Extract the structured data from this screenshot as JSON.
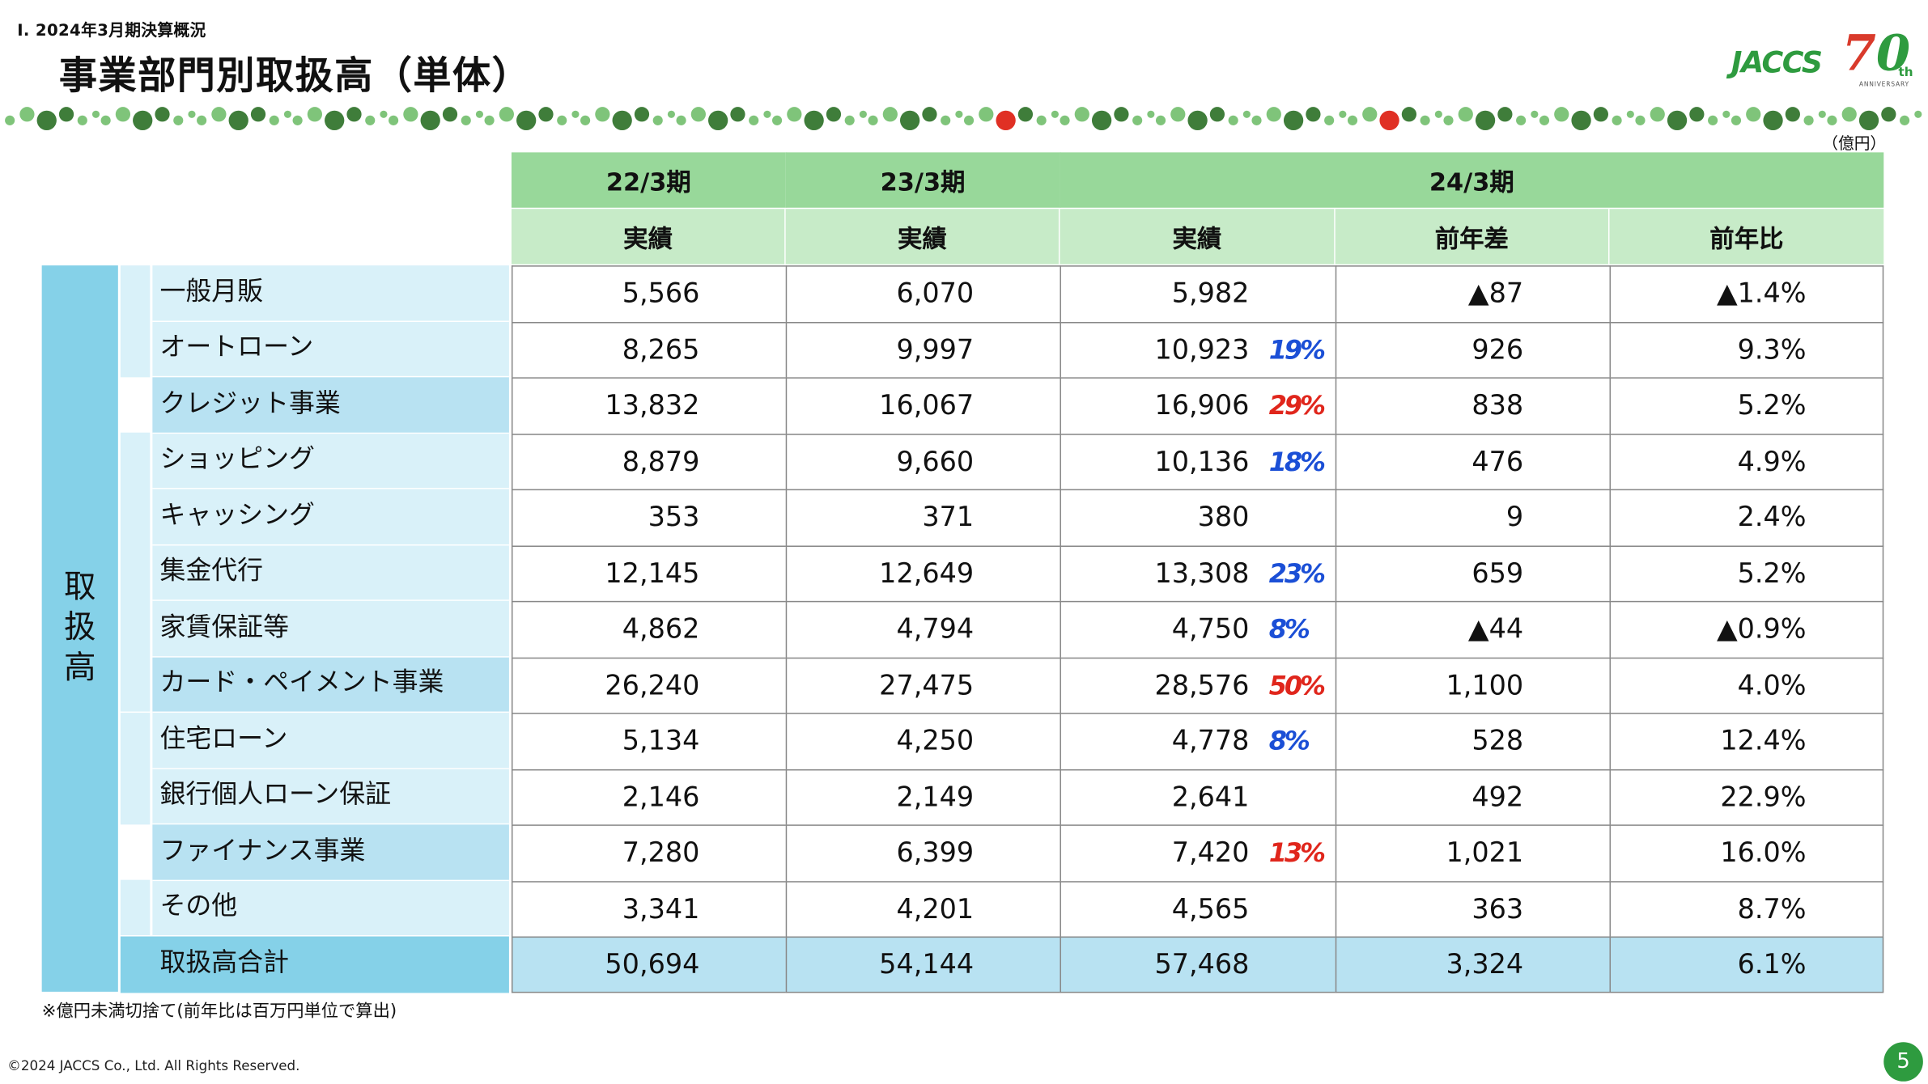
{
  "header": {
    "kicker": "Ⅰ. 2024年3月期決算概況",
    "title": "事業部門別取扱高（単体）",
    "logo_text": "JACCS",
    "logo_number": "70",
    "logo_suffix": "th",
    "logo_sub": "ANNIVERSARY"
  },
  "unit_label": "（億円）",
  "table": {
    "period_headers": [
      "22/3期",
      "23/3期",
      "24/3期"
    ],
    "sub_headers": [
      "実績",
      "実績",
      "実績",
      "前年差",
      "前年比"
    ],
    "side_label": [
      "取",
      "扱",
      "高"
    ],
    "rows": [
      {
        "label": "一般月販",
        "kind": "sub",
        "v": [
          "5,566",
          "6,070",
          "5,982",
          "▲87",
          "▲1.4%"
        ],
        "note": ""
      },
      {
        "label": "オートローン",
        "kind": "sub",
        "v": [
          "8,265",
          "9,997",
          "10,923",
          "926",
          "9.3%"
        ],
        "note": "19%"
      },
      {
        "label": "クレジット事業",
        "kind": "tot",
        "v": [
          "13,832",
          "16,067",
          "16,906",
          "838",
          "5.2%"
        ],
        "note": "29%"
      },
      {
        "label": "ショッピング",
        "kind": "sub",
        "v": [
          "8,879",
          "9,660",
          "10,136",
          "476",
          "4.9%"
        ],
        "note": "18%"
      },
      {
        "label": "キャッシング",
        "kind": "sub",
        "v": [
          "353",
          "371",
          "380",
          "9",
          "2.4%"
        ],
        "note": ""
      },
      {
        "label": "集金代行",
        "kind": "sub",
        "v": [
          "12,145",
          "12,649",
          "13,308",
          "659",
          "5.2%"
        ],
        "note": "23%"
      },
      {
        "label": "家賃保証等",
        "kind": "sub",
        "v": [
          "4,862",
          "4,794",
          "4,750",
          "▲44",
          "▲0.9%"
        ],
        "note": "8%"
      },
      {
        "label": "カード・ペイメント事業",
        "kind": "tot",
        "v": [
          "26,240",
          "27,475",
          "28,576",
          "1,100",
          "4.0%"
        ],
        "note": "50%"
      },
      {
        "label": "住宅ローン",
        "kind": "sub",
        "v": [
          "5,134",
          "4,250",
          "4,778",
          "528",
          "12.4%"
        ],
        "note": "8%"
      },
      {
        "label": "銀行個人ローン保証",
        "kind": "sub",
        "v": [
          "2,146",
          "2,149",
          "2,641",
          "492",
          "22.9%"
        ],
        "note": ""
      },
      {
        "label": "ファイナンス事業",
        "kind": "tot",
        "v": [
          "7,280",
          "6,399",
          "7,420",
          "1,021",
          "16.0%"
        ],
        "note": "13%"
      },
      {
        "label": "その他",
        "kind": "sub",
        "v": [
          "3,341",
          "4,201",
          "4,565",
          "363",
          "8.7%"
        ],
        "note": ""
      },
      {
        "label": "取扱高合計",
        "kind": "grand",
        "v": [
          "50,694",
          "54,144",
          "57,468",
          "3,324",
          "6.1%"
        ],
        "note": ""
      }
    ]
  },
  "notes": {
    "footnote": "※億円未満切捨て(前年比は百万円単位で算出)",
    "copyright": "©2024 JACCS Co., Ltd. All Rights Reserved.",
    "page_number": "5"
  },
  "colors": {
    "green_dark": "#2e9b3f",
    "header_green": "#98d89a",
    "subheader_green": "#c7ebc8",
    "side_blue": "#85d1e8",
    "light_blue": "#d9f1f9",
    "mid_blue": "#b8e2f2",
    "note_blue": "#1b4fd6",
    "note_red": "#e0261c"
  }
}
